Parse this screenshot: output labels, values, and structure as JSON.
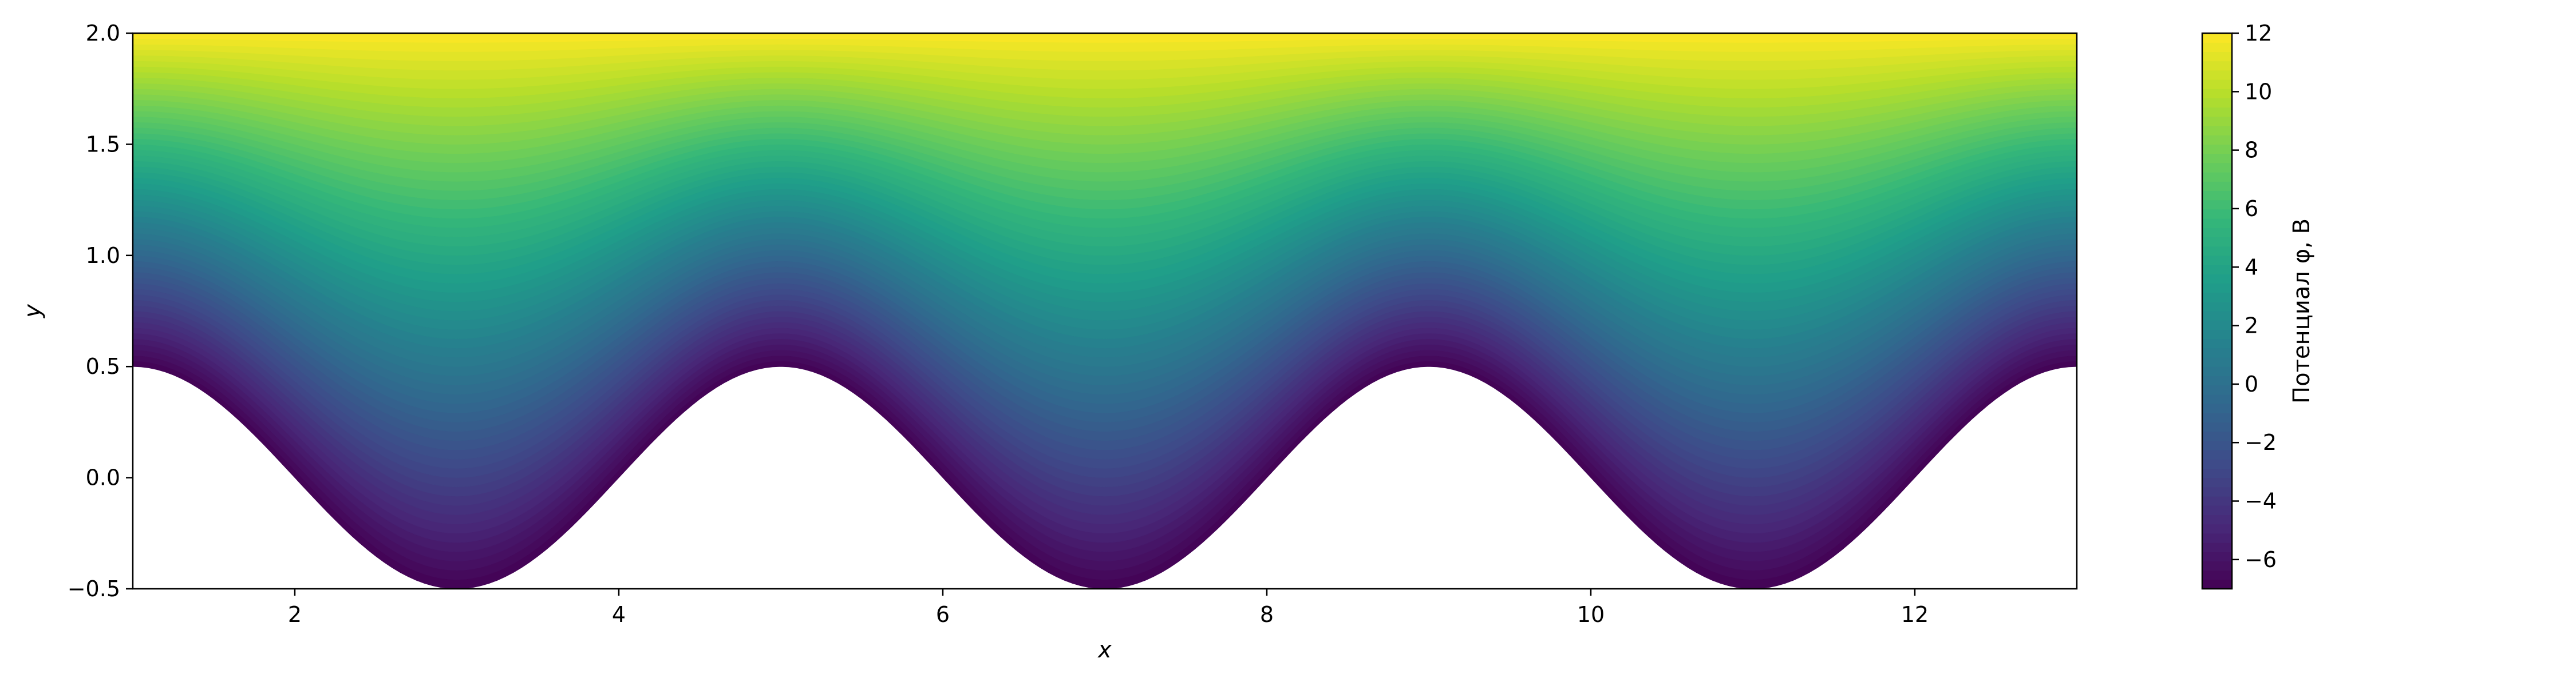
{
  "chart_data": {
    "type": "heatmap",
    "title": "",
    "xlabel": "x",
    "ylabel": "y",
    "xlim": [
      1,
      13
    ],
    "ylim": [
      -0.5,
      2.0
    ],
    "x_ticks": [
      {
        "value": 2,
        "label": "2"
      },
      {
        "value": 4,
        "label": "4"
      },
      {
        "value": 6,
        "label": "6"
      },
      {
        "value": 8,
        "label": "8"
      },
      {
        "value": 10,
        "label": "10"
      },
      {
        "value": 12,
        "label": "12"
      }
    ],
    "y_ticks": [
      {
        "value": -0.5,
        "label": "−0.5"
      },
      {
        "value": 0.0,
        "label": "0.0"
      },
      {
        "value": 0.5,
        "label": "0.5"
      },
      {
        "value": 1.0,
        "label": "1.0"
      },
      {
        "value": 1.5,
        "label": "1.5"
      },
      {
        "value": 2.0,
        "label": "2.0"
      }
    ],
    "lower_boundary": {
      "formula": "y = 0.5*cos(pi*(x-1)/2)",
      "amplitude": 0.5,
      "period": 4,
      "maxima_x": [
        1,
        5,
        9,
        13
      ],
      "minima_x": [
        3,
        7,
        11
      ]
    },
    "potential": {
      "at_boundary": -7,
      "at_top": 12,
      "top_y": 2.0
    },
    "grid": false,
    "colormap": "viridis",
    "colorbar": {
      "label": "Потенциал φ, В",
      "vmin": -7,
      "vmax": 12,
      "ticks": [
        {
          "value": -6,
          "label": "−6"
        },
        {
          "value": -4,
          "label": "−4"
        },
        {
          "value": -2,
          "label": "−2"
        },
        {
          "value": 0,
          "label": "0"
        },
        {
          "value": 2,
          "label": "2"
        },
        {
          "value": 4,
          "label": "4"
        },
        {
          "value": 6,
          "label": "6"
        },
        {
          "value": 8,
          "label": "8"
        },
        {
          "value": 10,
          "label": "10"
        },
        {
          "value": 12,
          "label": "12"
        }
      ]
    },
    "colors": {
      "viridis_stops": [
        "#440154",
        "#482878",
        "#3e4a89",
        "#31688e",
        "#26828e",
        "#1f9e89",
        "#35b779",
        "#6ece58",
        "#b5de2b",
        "#fde725"
      ]
    }
  }
}
